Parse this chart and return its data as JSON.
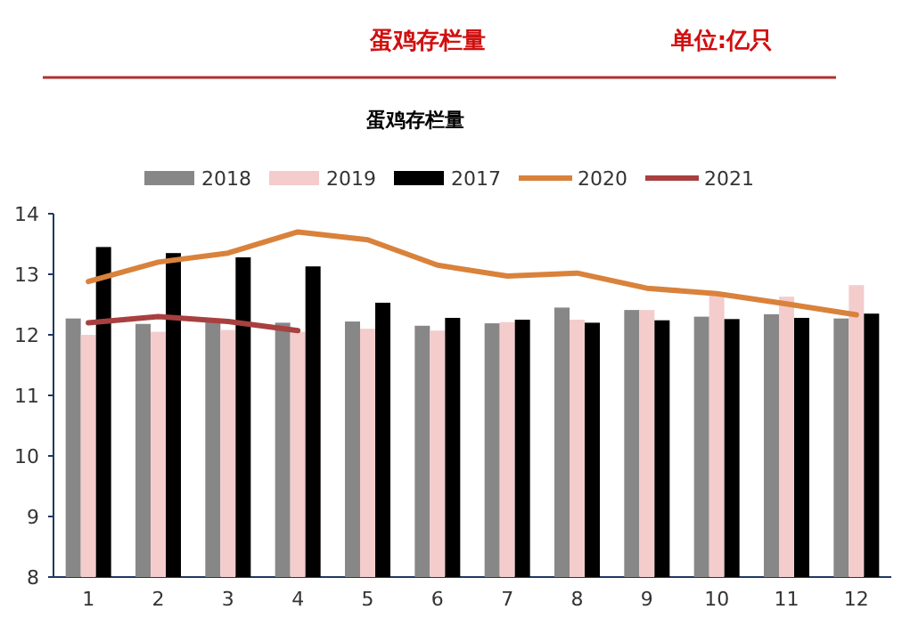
{
  "chart_data": {
    "type": "bar",
    "title": "蛋鸡存栏量",
    "annotations": [
      "蛋鸡存栏量",
      "单位:亿只"
    ],
    "categories": [
      "1",
      "2",
      "3",
      "4",
      "5",
      "6",
      "7",
      "8",
      "9",
      "10",
      "11",
      "12"
    ],
    "series": [
      {
        "name": "2018",
        "color": "#878787",
        "values": [
          12.27,
          12.18,
          12.25,
          12.2,
          12.22,
          12.15,
          12.19,
          12.45,
          12.41,
          12.3,
          12.34,
          12.27
        ]
      },
      {
        "name": "2019",
        "color": "#f4cccc",
        "values": [
          12.0,
          12.05,
          12.08,
          12.05,
          12.1,
          12.07,
          12.21,
          12.25,
          12.41,
          12.65,
          12.63,
          12.82
        ]
      },
      {
        "name": "2017",
        "color": "#000000",
        "values": [
          13.45,
          13.35,
          13.28,
          13.13,
          12.53,
          12.28,
          12.25,
          12.2,
          12.24,
          12.26,
          12.28,
          12.35
        ]
      },
      {
        "name": "2020",
        "color": "#d9823b",
        "type": "line",
        "values": [
          12.88,
          13.2,
          13.35,
          13.7,
          13.57,
          13.15,
          12.97,
          13.02,
          12.77,
          12.68,
          12.51,
          12.33
        ]
      },
      {
        "name": "2021",
        "color": "#a84040",
        "type": "line",
        "values": [
          12.2,
          12.3,
          12.22,
          12.07,
          null,
          null,
          null,
          null,
          null,
          null,
          null,
          null
        ]
      }
    ],
    "ylim": [
      8,
      14
    ],
    "yticks": [
      8,
      9,
      10,
      11,
      12,
      13,
      14
    ],
    "legend": "top",
    "grid": false
  }
}
